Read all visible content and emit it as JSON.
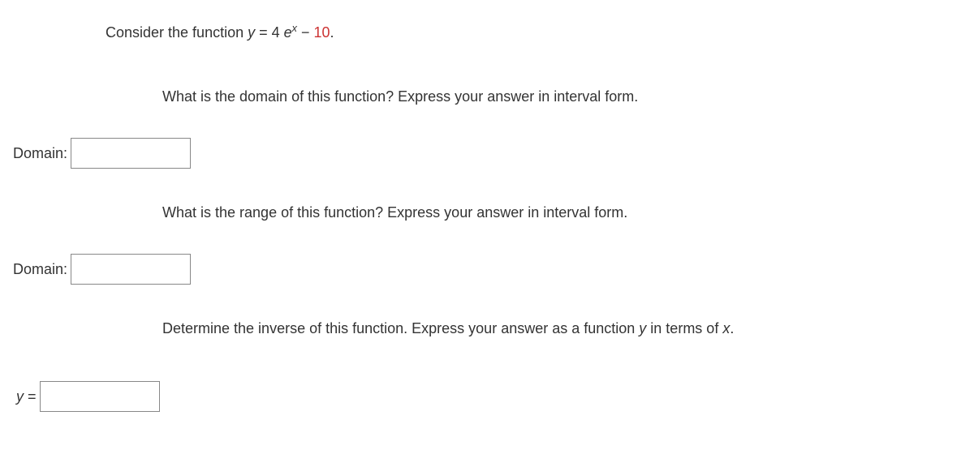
{
  "intro": {
    "prefix": "Consider the function ",
    "y": "y",
    "eq": " = 4 ",
    "e": "e",
    "x": "x",
    "minus": " − ",
    "ten": "10",
    "period": "."
  },
  "q1": {
    "text": "What is the domain of this function? Express your answer in interval form.",
    "label": "Domain:"
  },
  "q2": {
    "text": "What is the range of this function? Express your answer in interval form.",
    "label": "Domain:"
  },
  "q3": {
    "prefix": "Determine the inverse of this function. Express your answer as a function ",
    "y": "y",
    "mid": " in terms of ",
    "x": "x",
    "period": ".",
    "label_y": "y",
    "label_eq": " ="
  },
  "inputs": {
    "domain": "",
    "range": "",
    "inverse": ""
  }
}
